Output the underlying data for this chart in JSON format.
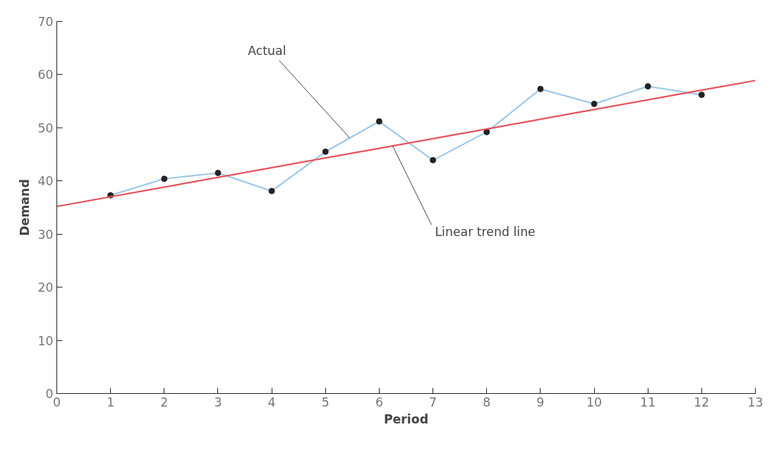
{
  "chart_data": {
    "type": "line",
    "xlabel": "Period",
    "ylabel": "Demand",
    "x": [
      1,
      2,
      3,
      4,
      5,
      6,
      7,
      8,
      9,
      10,
      11,
      12
    ],
    "series": [
      {
        "color": "#9cc8e8",
        "marker": "circle",
        "values": [
          37.3,
          40.4,
          41.5,
          38.1,
          45.5,
          51.2,
          43.9,
          49.2,
          57.3,
          54.5,
          57.8,
          56.2
        ]
      },
      {
        "type": "line",
        "color": "#e8505a",
        "marker": "none",
        "x": [
          0,
          13
        ],
        "values": [
          35.2,
          58.9
        ]
      }
    ],
    "xlim": [
      0,
      13
    ],
    "xticks": [
      0,
      1,
      2,
      3,
      4,
      5,
      6,
      7,
      8,
      9,
      10,
      11,
      12,
      13
    ],
    "ylim": [
      0,
      70
    ],
    "yticks": [
      0,
      10,
      20,
      30,
      40,
      50,
      60,
      70
    ],
    "grid": false,
    "annotations": [
      {
        "text": "Actual",
        "x": 5.45,
        "y": 48.1
      },
      {
        "text": "Linear trend line",
        "x": 6.25,
        "y": 46.6
      }
    ]
  }
}
